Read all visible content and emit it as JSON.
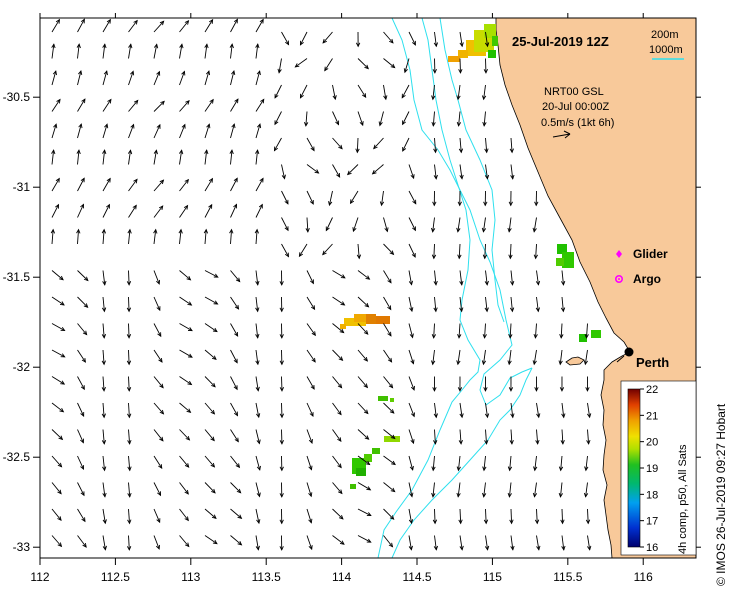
{
  "title": "25-Jul-2019 12Z",
  "depth_legend": {
    "contour_1": "200m",
    "contour_2": "1000m"
  },
  "current_info": {
    "product": "NRT00 GSL",
    "date": "20-Jul 00:00Z",
    "scale": "0.5m/s (1kt 6h)"
  },
  "legend_items": [
    {
      "label": "Glider",
      "color": "#ff00ff",
      "symbol": "diamond"
    },
    {
      "label": "Argo",
      "color": "#ff00ff",
      "symbol": "circle"
    }
  ],
  "place_label": "Perth",
  "colorbar": {
    "label": "4h comp, p50, All Sats",
    "ticks": [
      "22",
      "21",
      "20",
      "19",
      "18",
      "17",
      "16"
    ],
    "min": 16,
    "max": 22
  },
  "credit": "© IMOS 26-Jul-2019 09:27 Hobart",
  "axes": {
    "x_ticks": [
      "112",
      "112.5",
      "113",
      "113.5",
      "114",
      "114.5",
      "115",
      "115.5",
      "116"
    ],
    "y_ticks": [
      "-30.5",
      "-31",
      "-31.5",
      "-32",
      "-32.5",
      "-33"
    ]
  },
  "colors": {
    "land": "#f8c99a",
    "contour": "#2ee0ee",
    "glider": "#ff00ff",
    "scale_line": "#2ee0ee"
  }
}
